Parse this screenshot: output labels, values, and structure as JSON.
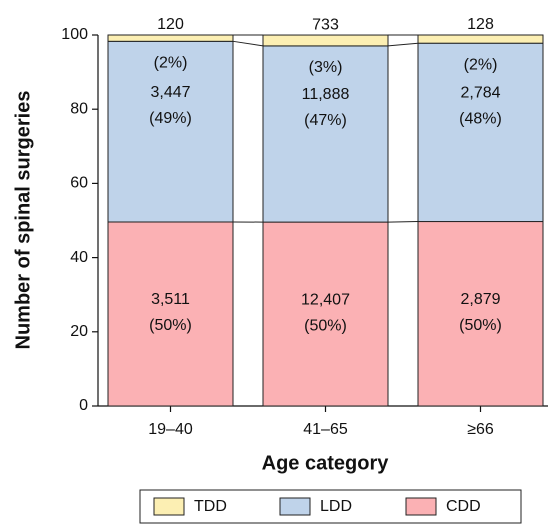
{
  "chart_data": {
    "type": "stacked_bar_percent",
    "y_label": "Number of spinal surgeries",
    "x_label": "Age category",
    "categories": [
      "19–40",
      "41–65",
      "≥66"
    ],
    "ylim": [
      0,
      100
    ],
    "yticks": [
      0,
      20,
      40,
      60,
      80,
      100
    ],
    "legend": "bottom",
    "series": [
      {
        "name": "CDD",
        "color": "#fbb1b4",
        "values": [
          49.6,
          49.57,
          49.72
        ],
        "count_labels": [
          "3,511",
          "12,407",
          "2,879"
        ],
        "value_labels": [
          "(50%)",
          "(50%)",
          "(50%)"
        ]
      },
      {
        "name": "LDD",
        "color": "#bfd3ea",
        "values": [
          48.7,
          47.49,
          48.07
        ],
        "count_labels": [
          "3,447",
          "11,888",
          "2,784"
        ],
        "value_labels": [
          "(49%)",
          "(47%)",
          "(48%)"
        ]
      },
      {
        "name": "TDD",
        "color": "#fcefb3",
        "values": [
          1.7,
          2.93,
          2.21
        ],
        "count_labels": [
          "120",
          "733",
          "128"
        ],
        "value_labels": [
          "(2%)",
          "(3%)",
          "(2%)"
        ]
      }
    ]
  }
}
